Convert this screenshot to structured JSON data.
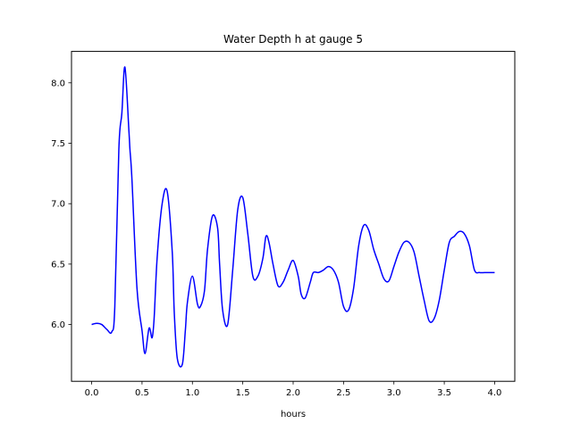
{
  "chart_data": {
    "type": "line",
    "title": "Water Depth h at gauge 5",
    "xlabel": "hours",
    "ylabel": "",
    "xlim": [
      -0.2,
      4.2
    ],
    "ylim": [
      5.53,
      8.26
    ],
    "x_ticks": [
      0.0,
      0.5,
      1.0,
      1.5,
      2.0,
      2.5,
      3.0,
      3.5,
      4.0
    ],
    "x_tick_labels": [
      "0.0",
      "0.5",
      "1.0",
      "1.5",
      "2.0",
      "2.5",
      "3.0",
      "3.5",
      "4.0"
    ],
    "y_ticks": [
      6.0,
      6.5,
      7.0,
      7.5,
      8.0
    ],
    "y_tick_labels": [
      "6.0",
      "6.5",
      "7.0",
      "7.5",
      "8.0"
    ],
    "grid": false,
    "legend": "none",
    "series": [
      {
        "color": "#0000ff",
        "x": [
          0.0,
          0.05,
          0.1,
          0.15,
          0.2,
          0.23,
          0.27,
          0.3,
          0.33,
          0.37,
          0.38,
          0.4,
          0.45,
          0.5,
          0.53,
          0.57,
          0.6,
          0.62,
          0.65,
          0.7,
          0.75,
          0.8,
          0.82,
          0.85,
          0.9,
          0.93,
          0.95,
          1.0,
          1.05,
          1.08,
          1.12,
          1.15,
          1.2,
          1.25,
          1.27,
          1.3,
          1.35,
          1.4,
          1.45,
          1.5,
          1.55,
          1.6,
          1.65,
          1.7,
          1.73,
          1.76,
          1.8,
          1.85,
          1.9,
          1.95,
          2.0,
          2.05,
          2.08,
          2.12,
          2.17,
          2.2,
          2.25,
          2.3,
          2.35,
          2.4,
          2.45,
          2.5,
          2.55,
          2.6,
          2.65,
          2.7,
          2.75,
          2.8,
          2.85,
          2.9,
          2.95,
          3.0,
          3.05,
          3.1,
          3.15,
          3.2,
          3.25,
          3.3,
          3.35,
          3.4,
          3.45,
          3.5,
          3.55,
          3.6,
          3.65,
          3.7,
          3.75,
          3.8,
          3.85,
          3.9,
          3.95,
          4.0
        ],
        "y": [
          6.0,
          6.01,
          6.0,
          5.96,
          5.94,
          6.15,
          7.45,
          7.75,
          8.13,
          7.6,
          7.45,
          7.2,
          6.3,
          5.95,
          5.76,
          5.97,
          5.89,
          6.05,
          6.55,
          7.0,
          7.1,
          6.6,
          6.1,
          5.72,
          5.67,
          5.95,
          6.18,
          6.4,
          6.17,
          6.15,
          6.28,
          6.62,
          6.9,
          6.8,
          6.5,
          6.12,
          6.0,
          6.45,
          6.95,
          7.05,
          6.75,
          6.4,
          6.4,
          6.55,
          6.73,
          6.68,
          6.5,
          6.32,
          6.35,
          6.45,
          6.53,
          6.4,
          6.25,
          6.22,
          6.35,
          6.43,
          6.43,
          6.45,
          6.48,
          6.45,
          6.35,
          6.15,
          6.12,
          6.3,
          6.65,
          6.82,
          6.78,
          6.62,
          6.5,
          6.38,
          6.36,
          6.48,
          6.6,
          6.68,
          6.68,
          6.6,
          6.4,
          6.2,
          6.03,
          6.05,
          6.2,
          6.45,
          6.68,
          6.73,
          6.77,
          6.75,
          6.65,
          6.45,
          6.43,
          6.43,
          6.43,
          6.43
        ]
      }
    ]
  }
}
